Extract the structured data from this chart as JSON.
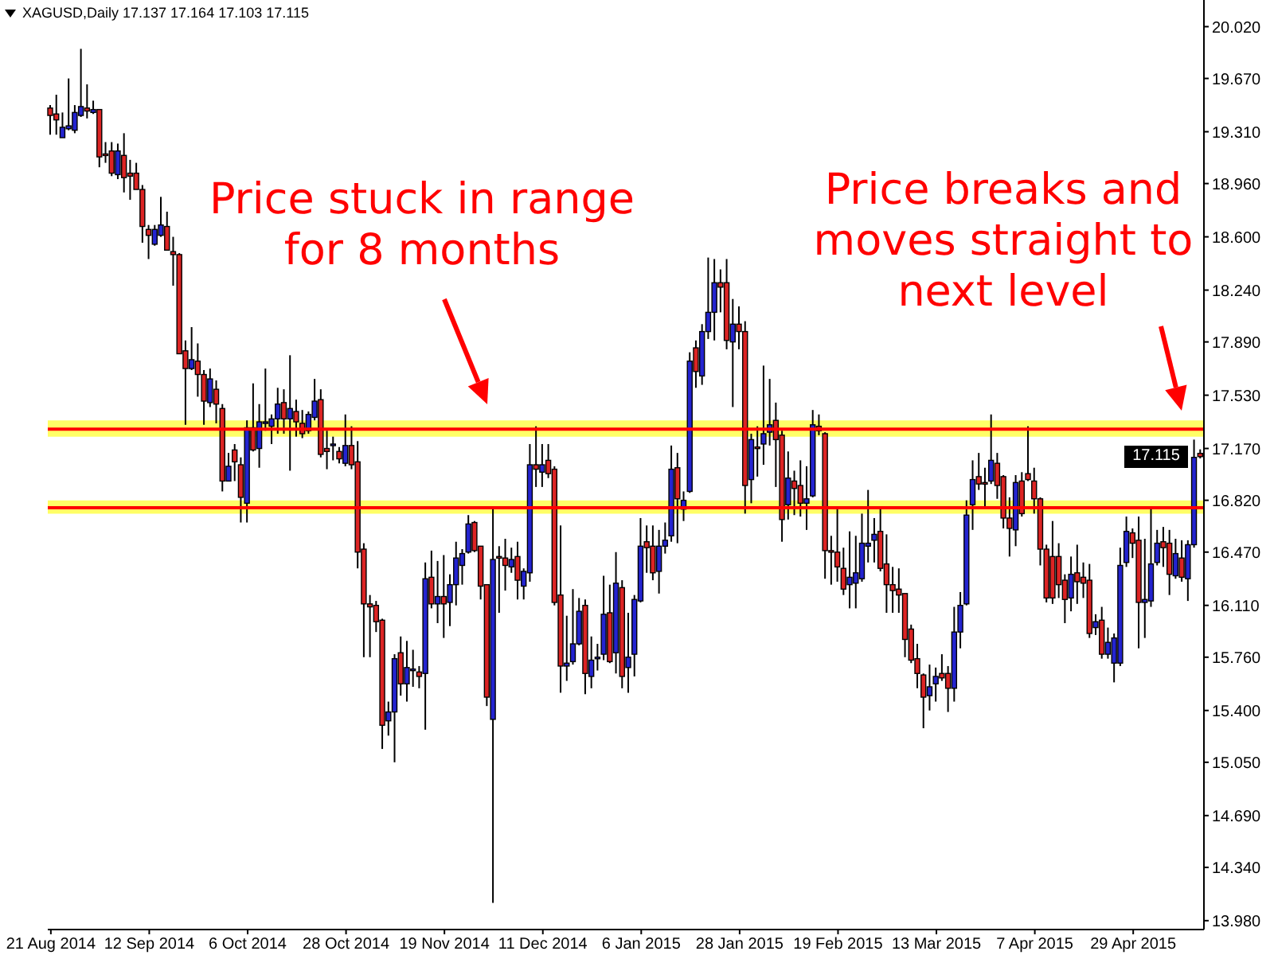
{
  "chart_data": {
    "type": "candlestick",
    "title": "XAGUSD,Daily 17.137 17.164 17.103 17.115",
    "categories": [
      "21 Aug 2014",
      null,
      null,
      null,
      null,
      null,
      null,
      null,
      null,
      null,
      null,
      null,
      null,
      null,
      null,
      null,
      "12 Sep 2014",
      null,
      null,
      null,
      null,
      null,
      null,
      null,
      null,
      null,
      null,
      null,
      null,
      null,
      null,
      null,
      "6 Oct 2014",
      null,
      null,
      null,
      null,
      null,
      null,
      null,
      null,
      null,
      null,
      null,
      null,
      null,
      null,
      null,
      "28 Oct 2014",
      null,
      null,
      null,
      null,
      null,
      null,
      null,
      null,
      null,
      null,
      null,
      null,
      null,
      null,
      null,
      "19 Nov 2014",
      null,
      null,
      null,
      null,
      null,
      null,
      null,
      null,
      null,
      null,
      null,
      null,
      null,
      null,
      null,
      "11 Dec 2014",
      null,
      null,
      null,
      null,
      null,
      null,
      null,
      null,
      null,
      null,
      null,
      null,
      null,
      null,
      null,
      "6 Jan 2015",
      null,
      null,
      null,
      null,
      null,
      null,
      null,
      null,
      null,
      null,
      null,
      null,
      null,
      null,
      null,
      "28 Jan 2015",
      null,
      null,
      null,
      null,
      null,
      null,
      null,
      null,
      null,
      null,
      null,
      null,
      null,
      null,
      null,
      "19 Feb 2015",
      null,
      null,
      null,
      null,
      null,
      null,
      null,
      null,
      null,
      null,
      null,
      null,
      null,
      null,
      null,
      "13 Mar 2015",
      null,
      null,
      null,
      null,
      null,
      null,
      null,
      null,
      null,
      null,
      null,
      null,
      null,
      null,
      null,
      "7 Apr 2015",
      null,
      null,
      null,
      null,
      null,
      null,
      null,
      null,
      null,
      null,
      null,
      null,
      null,
      null,
      null,
      "29 Apr 2015",
      null,
      null,
      null,
      null,
      null,
      null,
      null,
      null,
      null,
      null,
      null
    ],
    "ohlc": [
      [
        19.47,
        19.49,
        19.29,
        19.42
      ],
      [
        19.43,
        19.56,
        19.29,
        19.39
      ],
      [
        19.27,
        19.44,
        19.27,
        19.34
      ],
      [
        19.33,
        19.67,
        19.32,
        19.35
      ],
      [
        19.32,
        19.49,
        19.3,
        19.44
      ],
      [
        19.42,
        19.87,
        19.41,
        19.48
      ],
      [
        19.47,
        19.63,
        19.4,
        19.45
      ],
      [
        19.44,
        19.52,
        19.43,
        19.46
      ],
      [
        19.46,
        19.46,
        19.07,
        19.14
      ],
      [
        19.16,
        19.24,
        19.1,
        19.15
      ],
      [
        19.18,
        19.24,
        19.01,
        19.03
      ],
      [
        19.02,
        19.23,
        18.99,
        19.18
      ],
      [
        19.15,
        19.3,
        18.9,
        19.0
      ],
      [
        19.03,
        19.12,
        18.85,
        19.01
      ],
      [
        19.03,
        19.1,
        18.92,
        18.92
      ],
      [
        18.92,
        18.95,
        18.56,
        18.67
      ],
      [
        18.65,
        18.68,
        18.45,
        18.61
      ],
      [
        18.55,
        18.68,
        18.54,
        18.65
      ],
      [
        18.61,
        18.87,
        18.6,
        18.68
      ],
      [
        18.67,
        18.77,
        18.51,
        18.51
      ],
      [
        18.5,
        18.6,
        18.27,
        18.48
      ],
      [
        18.48,
        18.49,
        17.81,
        17.81
      ],
      [
        17.83,
        17.9,
        17.33,
        17.71
      ],
      [
        17.71,
        17.99,
        17.7,
        17.77
      ],
      [
        17.76,
        17.88,
        17.52,
        17.67
      ],
      [
        17.67,
        17.7,
        17.33,
        17.49
      ],
      [
        17.48,
        17.71,
        17.45,
        17.64
      ],
      [
        17.57,
        17.63,
        17.34,
        17.47
      ],
      [
        17.44,
        17.47,
        16.88,
        16.95
      ],
      [
        16.95,
        17.14,
        16.95,
        17.05
      ],
      [
        17.16,
        17.2,
        16.95,
        17.08
      ],
      [
        17.06,
        17.11,
        16.67,
        16.84
      ],
      [
        16.8,
        17.36,
        16.67,
        17.31
      ],
      [
        17.31,
        17.61,
        17.15,
        17.16
      ],
      [
        17.17,
        17.47,
        17.04,
        17.35
      ],
      [
        17.34,
        17.71,
        17.29,
        17.35
      ],
      [
        17.32,
        17.4,
        17.2,
        17.37
      ],
      [
        17.37,
        17.58,
        17.27,
        17.47
      ],
      [
        17.48,
        17.57,
        17.27,
        17.37
      ],
      [
        17.37,
        17.8,
        17.02,
        17.44
      ],
      [
        17.42,
        17.5,
        17.25,
        17.35
      ],
      [
        17.34,
        17.43,
        17.24,
        17.27
      ],
      [
        17.29,
        17.42,
        17.27,
        17.4
      ],
      [
        17.38,
        17.64,
        17.36,
        17.49
      ],
      [
        17.5,
        17.57,
        17.11,
        17.13
      ],
      [
        17.17,
        17.29,
        17.03,
        17.15
      ],
      [
        17.19,
        17.25,
        17.09,
        17.2
      ],
      [
        17.15,
        17.18,
        17.07,
        17.1
      ],
      [
        17.07,
        17.4,
        17.05,
        17.19
      ],
      [
        17.19,
        17.32,
        17.03,
        17.06
      ],
      [
        17.08,
        17.22,
        16.36,
        16.47
      ],
      [
        16.49,
        16.53,
        15.76,
        16.12
      ],
      [
        16.12,
        16.18,
        15.76,
        16.1
      ],
      [
        16.11,
        16.14,
        15.93,
        16.0
      ],
      [
        16.01,
        16.02,
        15.14,
        15.3
      ],
      [
        15.33,
        15.46,
        15.23,
        15.39
      ],
      [
        15.39,
        15.78,
        15.05,
        15.75
      ],
      [
        15.79,
        15.9,
        15.5,
        15.58
      ],
      [
        15.58,
        15.87,
        15.46,
        15.69
      ],
      [
        15.67,
        15.81,
        15.56,
        15.68
      ],
      [
        15.66,
        15.7,
        15.55,
        15.63
      ],
      [
        15.65,
        16.4,
        15.27,
        16.29
      ],
      [
        16.3,
        16.48,
        16.09,
        16.12
      ],
      [
        16.12,
        16.41,
        15.99,
        16.17
      ],
      [
        16.17,
        16.45,
        15.89,
        16.12
      ],
      [
        16.13,
        16.32,
        15.97,
        16.25
      ],
      [
        16.25,
        16.54,
        16.11,
        16.43
      ],
      [
        16.38,
        16.49,
        16.25,
        16.46
      ],
      [
        16.47,
        16.72,
        16.46,
        16.66
      ],
      [
        16.67,
        16.68,
        16.47,
        16.48
      ],
      [
        16.51,
        16.51,
        16.15,
        16.24
      ],
      [
        16.25,
        16.25,
        15.43,
        15.49
      ],
      [
        15.34,
        16.78,
        14.1,
        16.42
      ],
      [
        16.44,
        16.51,
        16.06,
        16.43
      ],
      [
        16.43,
        16.56,
        16.21,
        16.38
      ],
      [
        16.37,
        16.5,
        16.33,
        16.42
      ],
      [
        16.44,
        16.54,
        16.15,
        16.28
      ],
      [
        16.24,
        16.36,
        16.15,
        16.34
      ],
      [
        16.33,
        17.2,
        16.27,
        17.06
      ],
      [
        17.06,
        17.32,
        16.91,
        17.03
      ],
      [
        17.01,
        17.2,
        16.91,
        17.06
      ],
      [
        17.09,
        17.2,
        16.97,
        17.0
      ],
      [
        17.03,
        17.05,
        16.11,
        16.13
      ],
      [
        16.18,
        16.65,
        15.52,
        15.7
      ],
      [
        15.7,
        16.04,
        15.6,
        15.72
      ],
      [
        15.73,
        16.22,
        15.71,
        15.85
      ],
      [
        15.85,
        16.16,
        15.84,
        16.07
      ],
      [
        16.11,
        16.15,
        15.51,
        15.65
      ],
      [
        15.63,
        15.9,
        15.55,
        15.74
      ],
      [
        15.75,
        15.85,
        15.67,
        15.76
      ],
      [
        15.78,
        16.31,
        15.74,
        16.05
      ],
      [
        16.06,
        16.25,
        15.72,
        15.73
      ],
      [
        15.79,
        16.47,
        15.65,
        16.26
      ],
      [
        16.23,
        16.28,
        15.55,
        15.63
      ],
      [
        15.69,
        16.06,
        15.52,
        15.76
      ],
      [
        15.78,
        16.18,
        15.63,
        16.15
      ],
      [
        16.14,
        16.7,
        16.13,
        16.51
      ],
      [
        16.54,
        16.65,
        16.33,
        16.5
      ],
      [
        16.51,
        16.65,
        16.28,
        16.33
      ],
      [
        16.34,
        16.62,
        16.19,
        16.51
      ],
      [
        16.51,
        16.67,
        16.46,
        16.55
      ],
      [
        16.58,
        17.19,
        16.54,
        17.03
      ],
      [
        17.04,
        17.14,
        16.53,
        16.83
      ],
      [
        16.76,
        16.88,
        16.68,
        16.82
      ],
      [
        16.88,
        17.82,
        16.87,
        17.76
      ],
      [
        17.85,
        17.9,
        17.58,
        17.69
      ],
      [
        17.66,
        18.01,
        17.6,
        17.96
      ],
      [
        17.96,
        18.46,
        17.91,
        18.09
      ],
      [
        18.09,
        18.45,
        17.9,
        18.29
      ],
      [
        18.29,
        18.38,
        18.09,
        18.26
      ],
      [
        18.29,
        18.45,
        17.84,
        17.9
      ],
      [
        17.89,
        18.18,
        17.45,
        18.01
      ],
      [
        18.01,
        18.13,
        17.84,
        17.96
      ],
      [
        17.96,
        18.03,
        16.73,
        16.92
      ],
      [
        16.96,
        17.27,
        16.8,
        17.23
      ],
      [
        17.18,
        17.32,
        16.98,
        17.17
      ],
      [
        17.2,
        17.73,
        17.06,
        17.27
      ],
      [
        17.28,
        17.64,
        17.19,
        17.33
      ],
      [
        17.36,
        17.48,
        16.91,
        17.23
      ],
      [
        17.26,
        17.29,
        16.54,
        16.69
      ],
      [
        16.79,
        17.15,
        16.69,
        16.97
      ],
      [
        16.95,
        17.02,
        16.72,
        16.9
      ],
      [
        16.92,
        17.09,
        16.71,
        16.8
      ],
      [
        16.8,
        17.05,
        16.62,
        16.83
      ],
      [
        16.85,
        17.43,
        16.84,
        17.33
      ],
      [
        17.32,
        17.4,
        17.26,
        17.29
      ],
      [
        17.27,
        17.28,
        16.29,
        16.48
      ],
      [
        16.48,
        16.58,
        16.25,
        16.47
      ],
      [
        16.47,
        16.78,
        16.27,
        16.37
      ],
      [
        16.36,
        16.5,
        16.18,
        16.22
      ],
      [
        16.25,
        16.61,
        16.09,
        16.3
      ],
      [
        16.26,
        16.58,
        16.09,
        16.33
      ],
      [
        16.29,
        16.73,
        16.27,
        16.53
      ],
      [
        16.51,
        16.89,
        16.4,
        16.53
      ],
      [
        16.55,
        16.7,
        16.4,
        16.59
      ],
      [
        16.61,
        16.78,
        16.34,
        16.36
      ],
      [
        16.39,
        16.59,
        16.06,
        16.25
      ],
      [
        16.25,
        16.37,
        16.06,
        16.21
      ],
      [
        16.22,
        16.36,
        16.06,
        16.18
      ],
      [
        16.19,
        16.19,
        15.76,
        15.88
      ],
      [
        15.95,
        15.98,
        15.72,
        15.74
      ],
      [
        15.75,
        15.85,
        15.55,
        15.65
      ],
      [
        15.64,
        15.65,
        15.28,
        15.49
      ],
      [
        15.5,
        15.71,
        15.4,
        15.56
      ],
      [
        15.58,
        15.69,
        15.46,
        15.63
      ],
      [
        15.65,
        15.78,
        15.6,
        15.62
      ],
      [
        15.65,
        15.7,
        15.39,
        15.55
      ],
      [
        15.55,
        16.1,
        15.46,
        15.93
      ],
      [
        15.93,
        16.2,
        15.82,
        16.11
      ],
      [
        16.12,
        16.82,
        16.11,
        16.72
      ],
      [
        16.79,
        17.09,
        16.62,
        16.96
      ],
      [
        16.98,
        17.14,
        16.89,
        16.93
      ],
      [
        16.94,
        17.04,
        16.78,
        16.93
      ],
      [
        16.95,
        17.4,
        16.93,
        17.09
      ],
      [
        17.07,
        17.14,
        16.83,
        16.92
      ],
      [
        16.98,
        16.99,
        16.63,
        16.7
      ],
      [
        16.7,
        16.84,
        16.44,
        16.63
      ],
      [
        16.62,
        16.99,
        16.51,
        16.94
      ],
      [
        16.95,
        17.01,
        16.71,
        16.73
      ],
      [
        17.0,
        17.32,
        16.95,
        16.96
      ],
      [
        16.95,
        17.04,
        16.73,
        16.83
      ],
      [
        16.83,
        16.84,
        16.38,
        16.49
      ],
      [
        16.49,
        16.52,
        16.13,
        16.16
      ],
      [
        16.44,
        16.68,
        16.12,
        16.16
      ],
      [
        16.44,
        16.53,
        16.16,
        16.25
      ],
      [
        16.28,
        16.32,
        15.99,
        16.15
      ],
      [
        16.16,
        16.44,
        16.07,
        16.32
      ],
      [
        16.33,
        16.52,
        16.12,
        16.27
      ],
      [
        16.3,
        16.4,
        16.16,
        16.26
      ],
      [
        16.28,
        16.39,
        15.89,
        15.92
      ],
      [
        15.96,
        16.05,
        15.91,
        16.0
      ],
      [
        16.01,
        16.1,
        15.75,
        15.78
      ],
      [
        15.78,
        15.96,
        15.75,
        15.86
      ],
      [
        15.72,
        15.92,
        15.59,
        15.89
      ],
      [
        15.72,
        16.5,
        15.7,
        16.38
      ],
      [
        16.4,
        16.71,
        16.37,
        16.61
      ],
      [
        16.6,
        16.63,
        16.43,
        16.53
      ],
      [
        16.55,
        16.71,
        15.82,
        16.13
      ],
      [
        16.13,
        16.56,
        15.89,
        16.15
      ],
      [
        16.14,
        16.76,
        16.1,
        16.39
      ],
      [
        16.4,
        16.62,
        16.38,
        16.53
      ],
      [
        16.54,
        16.64,
        16.37,
        16.5
      ],
      [
        16.53,
        16.62,
        16.18,
        16.32
      ],
      [
        16.31,
        16.56,
        16.29,
        16.46
      ],
      [
        16.43,
        16.55,
        16.27,
        16.3
      ],
      [
        16.29,
        16.55,
        16.14,
        16.52
      ],
      [
        16.52,
        17.23,
        16.5,
        17.11
      ],
      [
        17.137,
        17.164,
        17.103,
        17.115
      ]
    ],
    "colors": [
      "#dc2424",
      "#dc2424",
      "#2424d0",
      "#2424d0",
      "#2424d0",
      "#2424d0",
      "#dc2424",
      "#2424d0",
      "#dc2424",
      "#dc2424",
      "#dc2424",
      "#2424d0",
      "#dc2424",
      "#dc2424",
      "#dc2424",
      "#dc2424",
      "#dc2424",
      "#2424d0",
      "#2424d0",
      "#dc2424",
      "#dc2424",
      "#dc2424",
      "#dc2424",
      "#2424d0",
      "#dc2424",
      "#dc2424",
      "#2424d0",
      "#dc2424",
      "#dc2424",
      "#2424d0",
      "#dc2424",
      "#dc2424",
      "#2424d0",
      "#dc2424",
      "#2424d0",
      "#2424d0",
      "#2424d0",
      "#2424d0",
      "#dc2424",
      "#2424d0",
      "#dc2424",
      "#dc2424",
      "#2424d0",
      "#2424d0",
      "#dc2424",
      "#dc2424",
      "#2424d0",
      "#dc2424",
      "#2424d0",
      "#dc2424",
      "#dc2424",
      "#dc2424",
      "#dc2424",
      "#dc2424",
      "#dc2424",
      "#2424d0",
      "#2424d0",
      "#dc2424",
      "#2424d0",
      "#2424d0",
      "#dc2424",
      "#2424d0",
      "#dc2424",
      "#2424d0",
      "#dc2424",
      "#2424d0",
      "#2424d0",
      "#2424d0",
      "#2424d0",
      "#dc2424",
      "#dc2424",
      "#dc2424",
      "#2424d0",
      "#dc2424",
      "#dc2424",
      "#2424d0",
      "#dc2424",
      "#2424d0",
      "#2424d0",
      "#dc2424",
      "#2424d0",
      "#dc2424",
      "#dc2424",
      "#dc2424",
      "#2424d0",
      "#2424d0",
      "#2424d0",
      "#dc2424",
      "#2424d0",
      "#2424d0",
      "#2424d0",
      "#dc2424",
      "#2424d0",
      "#dc2424",
      "#2424d0",
      "#2424d0",
      "#2424d0",
      "#dc2424",
      "#dc2424",
      "#2424d0",
      "#2424d0",
      "#2424d0",
      "#dc2424",
      "#2424d0",
      "#2424d0",
      "#dc2424",
      "#2424d0",
      "#2424d0",
      "#2424d0",
      "#dc2424",
      "#dc2424",
      "#2424d0",
      "#dc2424",
      "#dc2424",
      "#2424d0",
      "#dc2424",
      "#2424d0",
      "#2424d0",
      "#dc2424",
      "#dc2424",
      "#2424d0",
      "#dc2424",
      "#dc2424",
      "#2424d0",
      "#2424d0",
      "#dc2424",
      "#dc2424",
      "#dc2424",
      "#dc2424",
      "#dc2424",
      "#2424d0",
      "#2424d0",
      "#2424d0",
      "#2424d0",
      "#2424d0",
      "#dc2424",
      "#dc2424",
      "#dc2424",
      "#dc2424",
      "#dc2424",
      "#dc2424",
      "#dc2424",
      "#dc2424",
      "#2424d0",
      "#2424d0",
      "#dc2424",
      "#dc2424",
      "#2424d0",
      "#2424d0",
      "#2424d0",
      "#2424d0",
      "#dc2424",
      "#dc2424",
      "#2424d0",
      "#dc2424",
      "#dc2424",
      "#dc2424",
      "#2424d0",
      "#dc2424",
      "#dc2424",
      "#dc2424",
      "#dc2424",
      "#dc2424",
      "#dc2424",
      "#dc2424",
      "#dc2424",
      "#2424d0",
      "#dc2424",
      "#dc2424",
      "#dc2424",
      "#2424d0",
      "#dc2424",
      "#2424d0",
      "#2424d0",
      "#2424d0",
      "#2424d0",
      "#dc2424",
      "#dc2424",
      "#2424d0",
      "#2424d0",
      "#2424d0",
      "#dc2424",
      "#dc2424",
      "#2424d0",
      "#dc2424",
      "#2424d0",
      "#2424d0",
      "#dc2424"
    ],
    "ylim": [
      13.92,
      20.2
    ],
    "yticks": [
      {
        "value": 20.02,
        "label": "20.020"
      },
      {
        "value": 19.67,
        "label": "19.670"
      },
      {
        "value": 19.31,
        "label": "19.310"
      },
      {
        "value": 18.96,
        "label": "18.960"
      },
      {
        "value": 18.6,
        "label": "18.600"
      },
      {
        "value": 18.24,
        "label": "18.240"
      },
      {
        "value": 17.89,
        "label": "17.890"
      },
      {
        "value": 17.53,
        "label": "17.530"
      },
      {
        "value": 17.17,
        "label": "17.170"
      },
      {
        "value": 16.82,
        "label": "16.820"
      },
      {
        "value": 16.47,
        "label": "16.470"
      },
      {
        "value": 16.11,
        "label": "16.110"
      },
      {
        "value": 15.76,
        "label": "15.760"
      },
      {
        "value": 15.4,
        "label": "15.400"
      },
      {
        "value": 15.05,
        "label": "15.050"
      },
      {
        "value": 14.69,
        "label": "14.690"
      },
      {
        "value": 14.34,
        "label": "14.340"
      },
      {
        "value": 13.98,
        "label": "13.980"
      }
    ],
    "bands": [
      {
        "axis": "y",
        "from": 17.25,
        "to": 17.36,
        "color": "#ffff66"
      },
      {
        "axis": "y",
        "from": 16.73,
        "to": 16.82,
        "color": "#ffff66"
      }
    ],
    "ref_lines": [
      {
        "axis": "y",
        "value": 17.3,
        "color": "#ff0000"
      },
      {
        "axis": "y",
        "value": 16.77,
        "color": "#ff0000"
      }
    ],
    "annotations": [
      "Price stuck in range\nfor 8 months",
      "Price breaks and\nmoves straight to\nnext level",
      {
        "text": "17.115",
        "y": 17.115
      }
    ]
  }
}
